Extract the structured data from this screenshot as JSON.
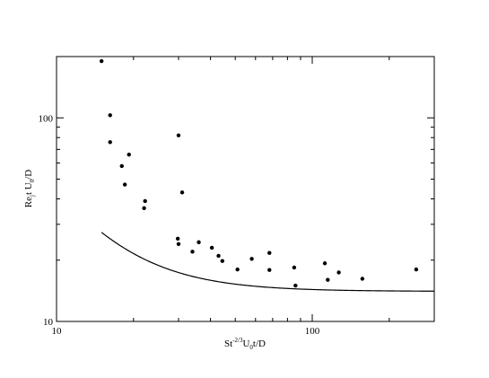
{
  "chart_data": {
    "type": "scatter",
    "title": "",
    "xscale": "log",
    "yscale": "log",
    "xlim": [
      10,
      300
    ],
    "ylim": [
      10,
      200
    ],
    "x_ticks": [
      {
        "value": 10,
        "label": "10"
      },
      {
        "value": 100,
        "label": "100"
      }
    ],
    "y_ticks": [
      {
        "value": 10,
        "label": "10"
      },
      {
        "value": 100,
        "label": "100"
      }
    ],
    "xlabel": {
      "base": "St",
      "sup1": "-2/3",
      "mid": "U",
      "sub": "0",
      "tail": "t/D"
    },
    "ylabel": {
      "base": "Re",
      "sub1": "j",
      "mid": "t U",
      "sub2": "0",
      "tail": "/D"
    },
    "grid": false,
    "legend": false,
    "points": [
      {
        "x": 15.0,
        "y": 190
      },
      {
        "x": 16.2,
        "y": 103
      },
      {
        "x": 16.2,
        "y": 76
      },
      {
        "x": 18.0,
        "y": 58
      },
      {
        "x": 18.5,
        "y": 47
      },
      {
        "x": 19.2,
        "y": 66
      },
      {
        "x": 22.0,
        "y": 36
      },
      {
        "x": 22.2,
        "y": 39
      },
      {
        "x": 30.0,
        "y": 82
      },
      {
        "x": 31.0,
        "y": 43
      },
      {
        "x": 29.8,
        "y": 25.5
      },
      {
        "x": 30.0,
        "y": 24
      },
      {
        "x": 34.0,
        "y": 22
      },
      {
        "x": 36.0,
        "y": 24.5
      },
      {
        "x": 40.5,
        "y": 23
      },
      {
        "x": 43.0,
        "y": 21
      },
      {
        "x": 44.5,
        "y": 19.8
      },
      {
        "x": 51.0,
        "y": 18
      },
      {
        "x": 58.0,
        "y": 20.3
      },
      {
        "x": 68.0,
        "y": 21.7
      },
      {
        "x": 68.0,
        "y": 17.9
      },
      {
        "x": 85.0,
        "y": 18.4
      },
      {
        "x": 86.0,
        "y": 15
      },
      {
        "x": 112.0,
        "y": 19.3
      },
      {
        "x": 115.0,
        "y": 16
      },
      {
        "x": 127.0,
        "y": 17.4
      },
      {
        "x": 157.0,
        "y": 16.2
      },
      {
        "x": 255.0,
        "y": 18
      }
    ],
    "fit_curve": {
      "type": "line",
      "a": 14.05,
      "b": 3000,
      "x_start": 15.0,
      "x_end": 300
    }
  }
}
